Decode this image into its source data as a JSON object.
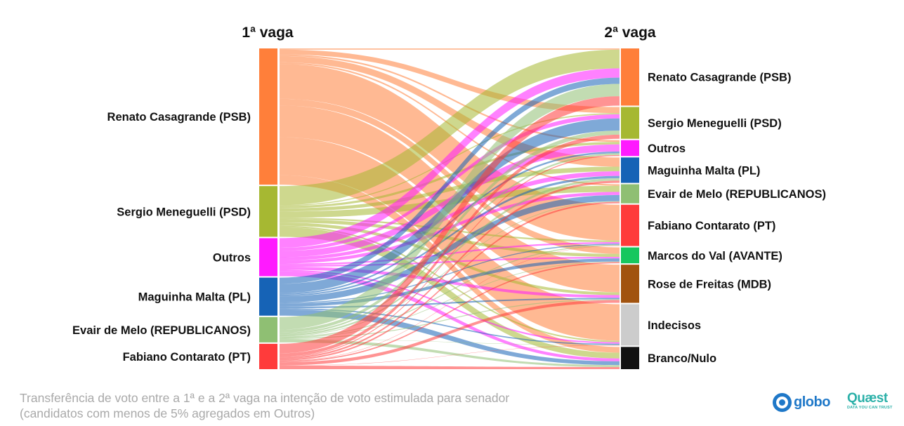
{
  "header": {
    "left_title": "1ª vaga",
    "right_title": "2ª vaga"
  },
  "caption": {
    "line1": "Transferência de voto entre a 1ª e a 2ª vaga na intenção de voto estimulada para senador",
    "line2": "(candidatos com menos de 5% agregados em Outros)"
  },
  "logos": {
    "globo": "globo",
    "quaest": "Quæst",
    "quaest_tagline": "DATA YOU CAN TRUST"
  },
  "colors": {
    "casagrande": "#ff7f3a",
    "meneguelli": "#a6b832",
    "outros": "#ff1aff",
    "maguinha": "#1663b6",
    "evair": "#8fbf73",
    "contarato": "#ff3b3b",
    "marcos": "#16c75e",
    "rose": "#a1530f",
    "indecisos": "#cccccc",
    "branco": "#111111"
  },
  "chart_data": {
    "type": "sankey",
    "title": "",
    "left_nodes": [
      {
        "id": "casagrande",
        "label": "Renato Casagrande (PSB)",
        "value": 43
      },
      {
        "id": "meneguelli",
        "label": "Sergio Meneguelli (PSD)",
        "value": 16
      },
      {
        "id": "outros",
        "label": "Outros",
        "value": 12
      },
      {
        "id": "maguinha",
        "label": "Maguinha Malta (PL)",
        "value": 12
      },
      {
        "id": "evair",
        "label": "Evair de Melo (REPUBLICANOS)",
        "value": 8
      },
      {
        "id": "contarato",
        "label": "Fabiano Contarato (PT)",
        "value": 8
      }
    ],
    "right_nodes": [
      {
        "id": "casagrande",
        "label": "Renato Casagrande (PSB)",
        "value": 18
      },
      {
        "id": "meneguelli",
        "label": "Sergio Meneguelli (PSD)",
        "value": 10
      },
      {
        "id": "outros",
        "label": "Outros",
        "value": 5
      },
      {
        "id": "maguinha",
        "label": "Maguinha Malta (PL)",
        "value": 8
      },
      {
        "id": "evair",
        "label": "Evair de Melo (REPUBLICANOS)",
        "value": 6
      },
      {
        "id": "contarato",
        "label": "Fabiano Contarato (PT)",
        "value": 13
      },
      {
        "id": "marcos",
        "label": "Marcos do Val (AVANTE)",
        "value": 5
      },
      {
        "id": "rose",
        "label": "Rose de Freitas (MDB)",
        "value": 12
      },
      {
        "id": "indecisos",
        "label": "Indecisos",
        "value": 13
      },
      {
        "id": "branco",
        "label": "Branco/Nulo",
        "value": 7
      }
    ],
    "links": [
      {
        "source": "casagrande",
        "target": "casagrande",
        "value": 0.4
      },
      {
        "source": "casagrande",
        "target": "meneguelli",
        "value": 1.5
      },
      {
        "source": "casagrande",
        "target": "outros",
        "value": 0.5
      },
      {
        "source": "casagrande",
        "target": "maguinha",
        "value": 2
      },
      {
        "source": "casagrande",
        "target": "evair",
        "value": 0.5
      },
      {
        "source": "casagrande",
        "target": "contarato",
        "value": 11
      },
      {
        "source": "casagrande",
        "target": "marcos",
        "value": 2.1
      },
      {
        "source": "casagrande",
        "target": "rose",
        "value": 10
      },
      {
        "source": "casagrande",
        "target": "indecisos",
        "value": 12
      },
      {
        "source": "casagrande",
        "target": "branco",
        "value": 3
      },
      {
        "source": "meneguelli",
        "target": "casagrande",
        "value": 6
      },
      {
        "source": "meneguelli",
        "target": "meneguelli",
        "value": 0.3
      },
      {
        "source": "meneguelli",
        "target": "outros",
        "value": 0.7
      },
      {
        "source": "meneguelli",
        "target": "maguinha",
        "value": 1
      },
      {
        "source": "meneguelli",
        "target": "evair",
        "value": 2
      },
      {
        "source": "meneguelli",
        "target": "contarato",
        "value": 0.5
      },
      {
        "source": "meneguelli",
        "target": "marcos",
        "value": 1
      },
      {
        "source": "meneguelli",
        "target": "rose",
        "value": 1
      },
      {
        "source": "meneguelli",
        "target": "indecisos",
        "value": 0.5
      },
      {
        "source": "meneguelli",
        "target": "branco",
        "value": 3
      },
      {
        "source": "outros",
        "target": "casagrande",
        "value": 3
      },
      {
        "source": "outros",
        "target": "meneguelli",
        "value": 1
      },
      {
        "source": "outros",
        "target": "outros",
        "value": 2
      },
      {
        "source": "outros",
        "target": "maguinha",
        "value": 1
      },
      {
        "source": "outros",
        "target": "evair",
        "value": 1
      },
      {
        "source": "outros",
        "target": "contarato",
        "value": 0.5
      },
      {
        "source": "outros",
        "target": "marcos",
        "value": 0.5
      },
      {
        "source": "outros",
        "target": "rose",
        "value": 1
      },
      {
        "source": "outros",
        "target": "indecisos",
        "value": 0.5
      },
      {
        "source": "outros",
        "target": "branco",
        "value": 1.5
      },
      {
        "source": "maguinha",
        "target": "casagrande",
        "value": 2
      },
      {
        "source": "maguinha",
        "target": "meneguelli",
        "value": 3
      },
      {
        "source": "maguinha",
        "target": "outros",
        "value": 0.5
      },
      {
        "source": "maguinha",
        "target": "maguinha",
        "value": 0.5
      },
      {
        "source": "maguinha",
        "target": "evair",
        "value": 2
      },
      {
        "source": "maguinha",
        "target": "contarato",
        "value": 0.3
      },
      {
        "source": "maguinha",
        "target": "marcos",
        "value": 1
      },
      {
        "source": "maguinha",
        "target": "rose",
        "value": 0.5
      },
      {
        "source": "maguinha",
        "target": "indecisos",
        "value": 0.4
      },
      {
        "source": "maguinha",
        "target": "branco",
        "value": 2
      },
      {
        "source": "evair",
        "target": "casagrande",
        "value": 4
      },
      {
        "source": "evair",
        "target": "meneguelli",
        "value": 1
      },
      {
        "source": "evair",
        "target": "outros",
        "value": 0.5
      },
      {
        "source": "evair",
        "target": "maguinha",
        "value": 0.5
      },
      {
        "source": "evair",
        "target": "evair",
        "value": 0.2
      },
      {
        "source": "evair",
        "target": "contarato",
        "value": 0.3
      },
      {
        "source": "evair",
        "target": "marcos",
        "value": 0.2
      },
      {
        "source": "evair",
        "target": "rose",
        "value": 0.3
      },
      {
        "source": "evair",
        "target": "indecisos",
        "value": 0.1
      },
      {
        "source": "evair",
        "target": "branco",
        "value": 1
      },
      {
        "source": "contarato",
        "target": "casagrande",
        "value": 3
      },
      {
        "source": "contarato",
        "target": "meneguelli",
        "value": 1
      },
      {
        "source": "contarato",
        "target": "outros",
        "value": 0.3
      },
      {
        "source": "contarato",
        "target": "maguinha",
        "value": 0.5
      },
      {
        "source": "contarato",
        "target": "evair",
        "value": 0.5
      },
      {
        "source": "contarato",
        "target": "contarato",
        "value": 0.1
      },
      {
        "source": "contarato",
        "target": "marcos",
        "value": 0.4
      },
      {
        "source": "contarato",
        "target": "rose",
        "value": 1
      },
      {
        "source": "contarato",
        "target": "indecisos",
        "value": 0.1
      },
      {
        "source": "contarato",
        "target": "branco",
        "value": 1.1
      }
    ]
  }
}
